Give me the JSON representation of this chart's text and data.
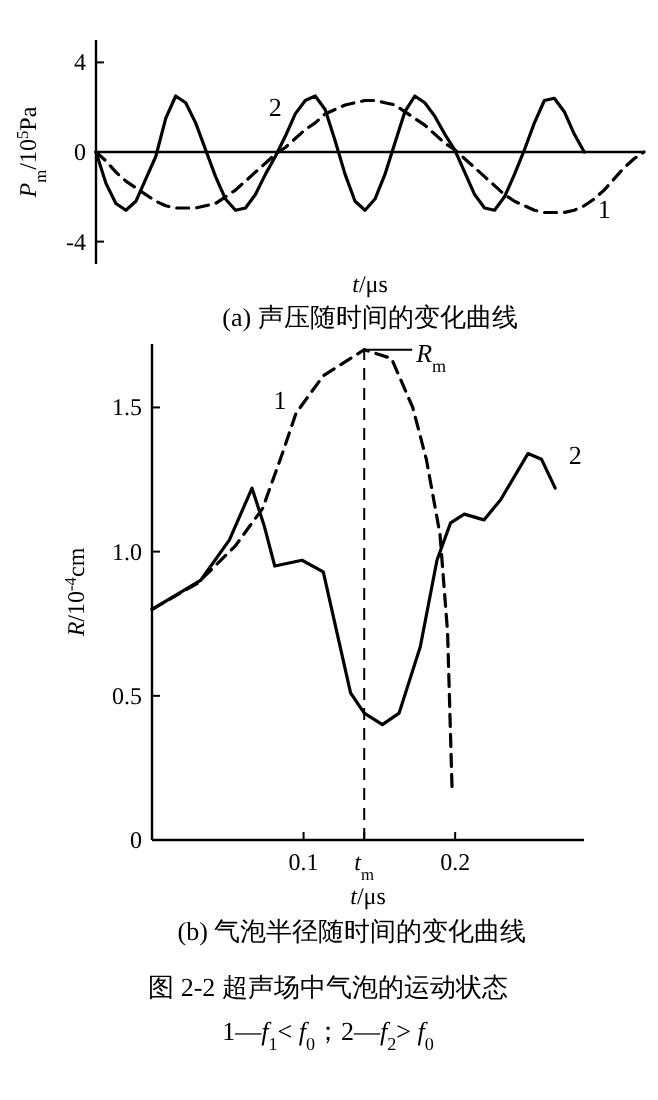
{
  "chart_data": [
    {
      "type": "line",
      "title": "(a) 声压随时间的变化曲线",
      "xlabel": "*t*/μs",
      "ylabel": "*P*$_{m}$/10$^{5}$Pa",
      "ylim": [
        -5,
        5
      ],
      "yticks": [
        -4,
        0,
        4
      ],
      "tick_labels": "y",
      "marker": "none",
      "categories": [
        null,
        null,
        null,
        null,
        null,
        null,
        null,
        null,
        null,
        null,
        null,
        null,
        null,
        null,
        null,
        null,
        null,
        null,
        null,
        null,
        null,
        null,
        null,
        null,
        null,
        null,
        null,
        null,
        null,
        null,
        null,
        null,
        null,
        null,
        null,
        null,
        null,
        null,
        null,
        null,
        null,
        null,
        null,
        null,
        null,
        null,
        null,
        null,
        null,
        null,
        null,
        null,
        null,
        null,
        null,
        null
      ],
      "series": [
        {
          "name": "1",
          "color": "#000000",
          "line_style": "dashed",
          "values": [
            0,
            -0.4,
            -0.9,
            -1.3,
            -1.6,
            -1.9,
            -2.2,
            -2.4,
            -2.5,
            -2.5,
            -2.5,
            -2.4,
            -2.3,
            -2,
            -1.7,
            -1.3,
            -0.9,
            -0.5,
            -0.1,
            0.2,
            0.6,
            1,
            1.3,
            1.7,
            1.9,
            2.1,
            2.2,
            2.3,
            2.3,
            2.2,
            2.1,
            1.8,
            1.5,
            1.2,
            0.8,
            0.4,
            0.1,
            -0.3,
            -0.7,
            -1.1,
            -1.5,
            -1.9,
            -2.2,
            -2.4,
            -2.6,
            -2.7,
            -2.7,
            -2.7,
            -2.6,
            -2.4,
            -2.1,
            -1.7,
            -1.2,
            -0.7,
            -0.3,
            0
          ]
        },
        {
          "name": "2",
          "color": "#000000",
          "line_style": "solid",
          "values": [
            0,
            -1.4,
            -2.3,
            -2.6,
            -2.2,
            -1.2,
            -0.2,
            1.5,
            2.5,
            2.2,
            1.3,
            0.1,
            -1.1,
            -2.1,
            -2.6,
            -2.5,
            -1.9,
            -1,
            -0.2,
            0.7,
            1.7,
            2.3,
            2.5,
            1.9,
            0.5,
            -1,
            -2.2,
            -2.6,
            -2.1,
            -1,
            0.4,
            1.8,
            2.5,
            2.2,
            1.6,
            0.8,
            0.1,
            -0.9,
            -1.9,
            -2.5,
            -2.6,
            -2,
            -1,
            0.1,
            1.3,
            2.3,
            2.4,
            1.8,
            0.8,
            0,
            null,
            null,
            null,
            null,
            null,
            null
          ]
        }
      ]
    },
    {
      "type": "line",
      "title": "(b) 气泡半径随时间的变化曲线",
      "xlabel": "*t*/μs",
      "ylabel": "*R*/10$^{-4}$cm",
      "xlim": [
        0,
        0.285
      ],
      "ylim": [
        0,
        1.72
      ],
      "xticks": [
        0.1,
        {
          "value": 0.14,
          "label": "*t*$_{m}$"
        },
        0.2
      ],
      "yticks": [
        0,
        {
          "value": 0.5,
          "label": "0.5"
        },
        {
          "value": 1,
          "label": "1.0"
        },
        {
          "value": 1.5,
          "label": "1.5"
        }
      ],
      "marker": "none",
      "ref_lines": [
        {
          "axis": "x",
          "value": 0.14,
          "line_style": "dashed"
        }
      ],
      "annotations": [
        {
          "text": "*R*$_{m}$",
          "x": 0.14,
          "y": 1.7
        },
        "图 2-2   超声场中气泡的运动状态",
        "1—*f*$_{1}$< *f*$_{0}$；2—*f*$_{2}$> *f*$_{0}$"
      ],
      "series": [
        {
          "name": "1",
          "color": "#000000",
          "line_style": "dashed",
          "x": [
            0,
            0.03,
            0.055,
            0.073,
            0.086,
            0.095,
            0.113,
            0.14,
            0.158,
            0.172,
            0.181,
            0.19,
            0.195,
            0.198
          ],
          "values": [
            0.8,
            0.89,
            1.02,
            1.15,
            1.34,
            1.48,
            1.61,
            1.7,
            1.67,
            1.5,
            1.32,
            1.06,
            0.72,
            0.17
          ]
        },
        {
          "name": "2",
          "color": "#000000",
          "line_style": "solid",
          "x": [
            0,
            0.032,
            0.051,
            0.066,
            0.074,
            0.081,
            0.099,
            0.113,
            0.122,
            0.131,
            0.14,
            0.152,
            0.163,
            0.177,
            0.188,
            0.197,
            0.206,
            0.219,
            0.23,
            0.248,
            0.257,
            0.266
          ],
          "values": [
            0.8,
            0.9,
            1.04,
            1.22,
            1.09,
            0.95,
            0.97,
            0.93,
            0.72,
            0.51,
            0.44,
            0.4,
            0.44,
            0.67,
            0.97,
            1.1,
            1.13,
            1.11,
            1.18,
            1.34,
            1.32,
            1.22
          ]
        }
      ]
    }
  ]
}
